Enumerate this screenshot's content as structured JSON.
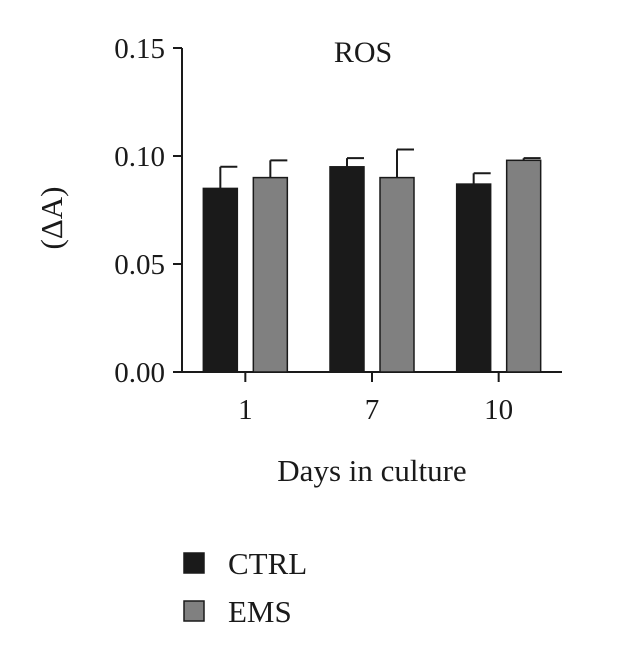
{
  "chart_data": {
    "type": "bar",
    "title": "ROS",
    "xlabel": "Days in culture",
    "ylabel": "(ΔA)",
    "categories": [
      "1",
      "7",
      "10"
    ],
    "ylim": [
      0,
      0.15
    ],
    "yticks": [
      "0.00",
      "0.05",
      "0.10",
      "0.15"
    ],
    "series": [
      {
        "name": "CTRL",
        "values": [
          0.085,
          0.095,
          0.087
        ],
        "errors": [
          0.01,
          0.004,
          0.005
        ],
        "color": "#1a1a1a"
      },
      {
        "name": "EMS",
        "values": [
          0.09,
          0.09,
          0.098
        ],
        "errors": [
          0.008,
          0.013,
          0.001
        ],
        "color": "#808080"
      }
    ],
    "legend_position": "bottom-left",
    "grid": false
  }
}
